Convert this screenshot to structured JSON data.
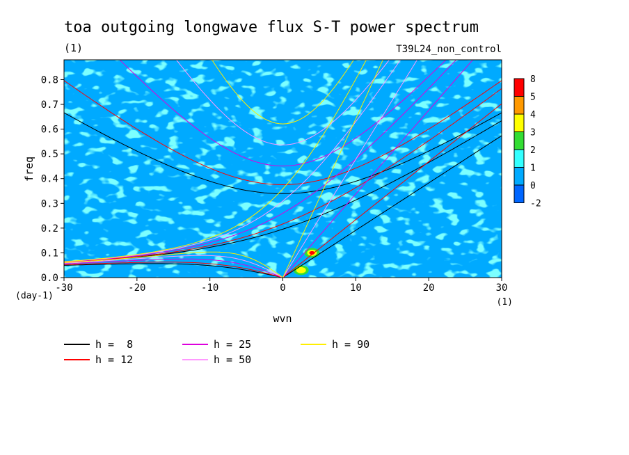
{
  "chart_data": {
    "type": "contour",
    "title": "toa outgoing longwave flux S-T power spectrum",
    "subtitle_left": "(1)",
    "subtitle_right": "T39L24_non_control",
    "xlabel": "wvn",
    "ylabel": "freq",
    "x_unit": "(1)",
    "y_unit": "(day-1)",
    "xlim": [
      -30,
      30
    ],
    "ylim": [
      0,
      0.88
    ],
    "xticks": [
      -30,
      -20,
      -10,
      0,
      10,
      20,
      30
    ],
    "xtick_labels": [
      "-30",
      "-20",
      "-10",
      "0",
      "10",
      "20",
      "30"
    ],
    "yticks": [
      0.0,
      0.1,
      0.2,
      0.3,
      0.4,
      0.5,
      0.6,
      0.7,
      0.8
    ],
    "ytick_labels": [
      "0.0",
      "0.1",
      "0.2",
      "0.3",
      "0.4",
      "0.5",
      "0.6",
      "0.7",
      "0.8"
    ],
    "colorbar": {
      "levels": [
        "8",
        "5",
        "4",
        "3",
        "2",
        "1",
        "0",
        "-2"
      ],
      "colors": [
        "#ff0000",
        "#ff9900",
        "#ffff00",
        "#33dd33",
        "#33ffff",
        "#00aaff",
        "#0066ff"
      ]
    },
    "background_color": "#00aaff",
    "dispersion_curves": [
      {
        "label": "h =  8",
        "h": 8,
        "color": "#000000"
      },
      {
        "label": "h = 12",
        "h": 12,
        "color": "#ff0000"
      },
      {
        "label": "h = 25",
        "h": 25,
        "color": "#dd00dd"
      },
      {
        "label": "h = 50",
        "h": 50,
        "color": "#ff99ff"
      },
      {
        "label": "h = 90",
        "h": 90,
        "color": "#ffee00"
      }
    ],
    "hotspots": [
      {
        "x": 4,
        "y": 0.1,
        "level": "5",
        "color": "#ff0000"
      },
      {
        "x": 2.5,
        "y": 0.03,
        "level": "3",
        "color": "#ffff00"
      }
    ]
  }
}
